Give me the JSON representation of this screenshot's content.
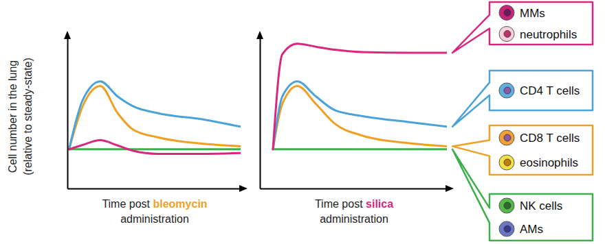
{
  "chart_data": [
    {
      "type": "line",
      "ylabel": [
        "Cell number in the lung",
        "(relative to steady-state)"
      ],
      "xlabel": [
        [
          {
            "text": "Time post "
          },
          {
            "text": "bleomycin",
            "color": "#f0a020"
          }
        ],
        [
          {
            "text": "administration"
          }
        ]
      ],
      "x": [
        0.1,
        0.9,
        1.9,
        2.9,
        3.8,
        5.2,
        8.0,
        10
      ],
      "xlim": [
        0,
        10
      ],
      "ylim": [
        0,
        10
      ],
      "tick_labels": false,
      "series": [
        {
          "color": "#d9267f",
          "values": [
            2.6,
            2.9,
            3.2,
            2.85,
            2.5,
            2.3,
            2.3,
            2.35
          ]
        },
        {
          "color": "#4aa3d8",
          "values": [
            2.6,
            5.9,
            7.1,
            6.1,
            5.45,
            5.0,
            4.55,
            4.1
          ]
        },
        {
          "color": "#f0a020",
          "values": [
            2.6,
            5.5,
            6.8,
            5.0,
            3.9,
            3.4,
            2.95,
            2.8
          ]
        },
        {
          "color": "#3cb04a",
          "values": [
            2.6,
            2.6,
            2.6,
            2.6,
            2.6,
            2.6,
            2.6,
            2.6
          ]
        }
      ]
    },
    {
      "type": "line",
      "xlabel": [
        [
          {
            "text": "Time post "
          },
          {
            "text": "silica",
            "color": "#d9267f"
          }
        ],
        [
          {
            "text": "administration"
          }
        ]
      ],
      "x": [
        0.7,
        1.2,
        2.0,
        3.0,
        4.0,
        5.5,
        8.0,
        10
      ],
      "xlim": [
        0,
        10
      ],
      "ylim": [
        0,
        10
      ],
      "tick_labels": false,
      "series": [
        {
          "color": "#d9267f",
          "values": [
            2.6,
            8.9,
            9.6,
            9.4,
            9.2,
            9.05,
            9.0,
            9.0
          ]
        },
        {
          "color": "#4aa3d8",
          "values": [
            2.6,
            6.1,
            7.1,
            6.1,
            5.2,
            4.8,
            4.4,
            4.1
          ]
        },
        {
          "color": "#f0a020",
          "values": [
            2.6,
            5.6,
            6.8,
            5.6,
            4.3,
            3.5,
            3.0,
            2.8
          ]
        },
        {
          "color": "#3cb04a",
          "values": [
            2.6,
            2.6,
            2.6,
            2.6,
            2.6,
            2.6,
            2.6,
            2.6
          ]
        }
      ]
    }
  ],
  "cell_groups": [
    {
      "color": "#d9267f",
      "cells": [
        "MMs",
        "neutrophils"
      ]
    },
    {
      "color": "#4aa3d8",
      "cells": [
        "CD4 T cells"
      ]
    },
    {
      "color": "#f0a020",
      "cells": [
        "CD8 T cells",
        "eosinophils"
      ]
    },
    {
      "color": "#3cb04a",
      "cells": [
        "NK cells",
        "AMs"
      ]
    }
  ]
}
